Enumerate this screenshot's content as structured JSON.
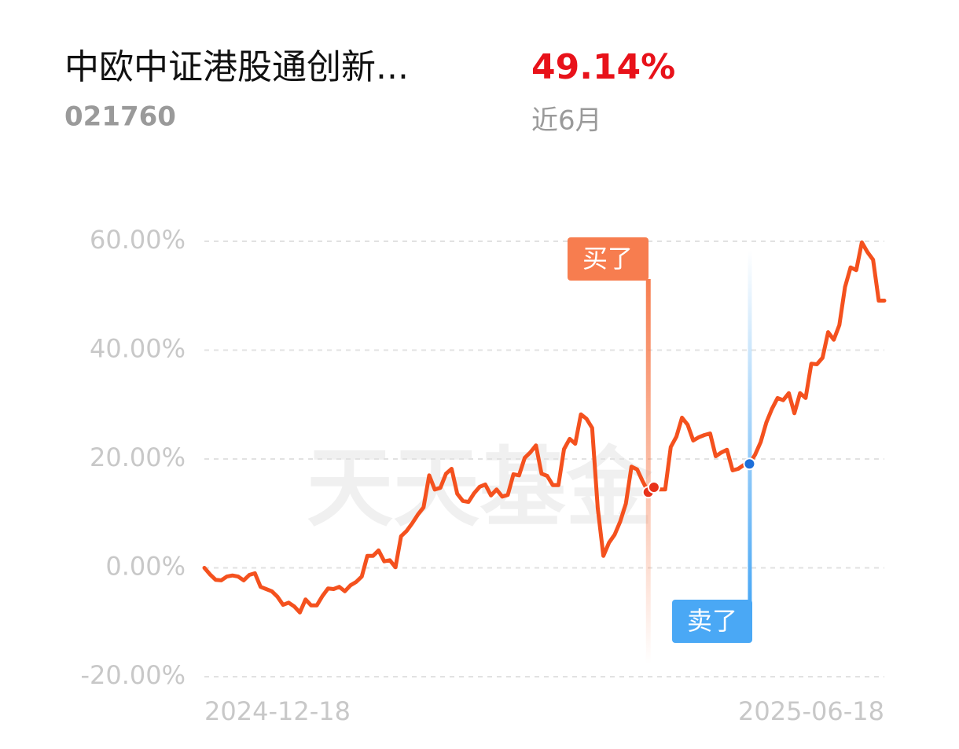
{
  "header": {
    "title": "中欧中证港股通创新...",
    "code": "021760",
    "return": "49.14%",
    "period": "近6月"
  },
  "chart_data": {
    "type": "line",
    "watermark": "天天基金",
    "categories": [
      "2024-12-18",
      null,
      null,
      null,
      null,
      null,
      null,
      null,
      null,
      null,
      null,
      null,
      null,
      null,
      null,
      null,
      null,
      null,
      null,
      null,
      null,
      null,
      null,
      null,
      null,
      null,
      null,
      null,
      null,
      null,
      null,
      null,
      null,
      null,
      null,
      null,
      null,
      null,
      null,
      null,
      null,
      null,
      null,
      null,
      null,
      null,
      null,
      null,
      null,
      null,
      null,
      null,
      null,
      null,
      null,
      null,
      null,
      null,
      null,
      null,
      null,
      null,
      null,
      null,
      null,
      null,
      null,
      null,
      null,
      null,
      null,
      null,
      null,
      null,
      null,
      null,
      null,
      null,
      null,
      null,
      null,
      null,
      null,
      null,
      null,
      null,
      null,
      null,
      null,
      null,
      null,
      null,
      null,
      null,
      null,
      null,
      null,
      null,
      null,
      null,
      null,
      null,
      null,
      null,
      null,
      null,
      null,
      null,
      null,
      null,
      null,
      null,
      null,
      null,
      null,
      null,
      null,
      null,
      null,
      null,
      null,
      "2025-06-18"
    ],
    "series": [
      {
        "color": "#f4511e",
        "values": [
          0,
          -1.2,
          -2.2,
          -2.3,
          -1.6,
          -1.4,
          -1.6,
          -2.3,
          -1.3,
          -1.0,
          -3.5,
          -3.9,
          -4.3,
          -5.3,
          -6.8,
          -6.4,
          -7.1,
          -8.2,
          -5.8,
          -6.9,
          -6.9,
          -5.2,
          -3.8,
          -3.9,
          -3.5,
          -4.3,
          -3.2,
          -2.6,
          -1.6,
          2.2,
          2.2,
          3.2,
          1.2,
          1.4,
          0.1,
          5.8,
          6.8,
          8.2,
          9.8,
          11.1,
          17.0,
          14.4,
          14.7,
          17.3,
          18.2,
          13.6,
          12.3,
          12.1,
          13.7,
          14.9,
          15.3,
          13.3,
          14.4,
          13.1,
          13.4,
          17.2,
          17.0,
          20.2,
          21.2,
          22.5,
          17.3,
          16.9,
          15.2,
          15.2,
          21.8,
          23.7,
          22.8,
          28.2,
          27.4,
          25.7,
          11.0,
          2.2,
          4.6,
          6.1,
          8.5,
          11.8,
          18.6,
          18.1,
          15.9,
          13.9,
          14.8,
          14.4,
          14.4,
          22.2,
          24.1,
          27.6,
          26.3,
          23.4,
          24.0,
          24.4,
          24.7,
          20.5,
          21.2,
          21.7,
          17.9,
          18.2,
          18.9,
          19.1,
          20.8,
          23.1,
          26.7,
          29.2,
          31.2,
          30.8,
          32.1,
          28.4,
          32.1,
          31.2,
          37.5,
          37.4,
          38.6,
          43.3,
          41.9,
          44.6,
          51.6,
          55.2,
          54.7,
          59.8,
          58.0,
          56.6,
          49.1,
          49.1
        ]
      }
    ],
    "ylim": [
      -20,
      60
    ],
    "yticks": [
      {
        "value": -20,
        "label": "-20.00%"
      },
      {
        "value": 0,
        "label": "0.00%"
      },
      {
        "value": 20,
        "label": "20.00%"
      },
      {
        "value": 40,
        "label": "40.00%"
      },
      {
        "value": 60,
        "label": "60.00%"
      }
    ],
    "grid": true,
    "markers": [
      {
        "label": "买了",
        "color": "#f77d4f"
      },
      {
        "label": "卖了",
        "color": "#4aa8f5"
      }
    ]
  }
}
